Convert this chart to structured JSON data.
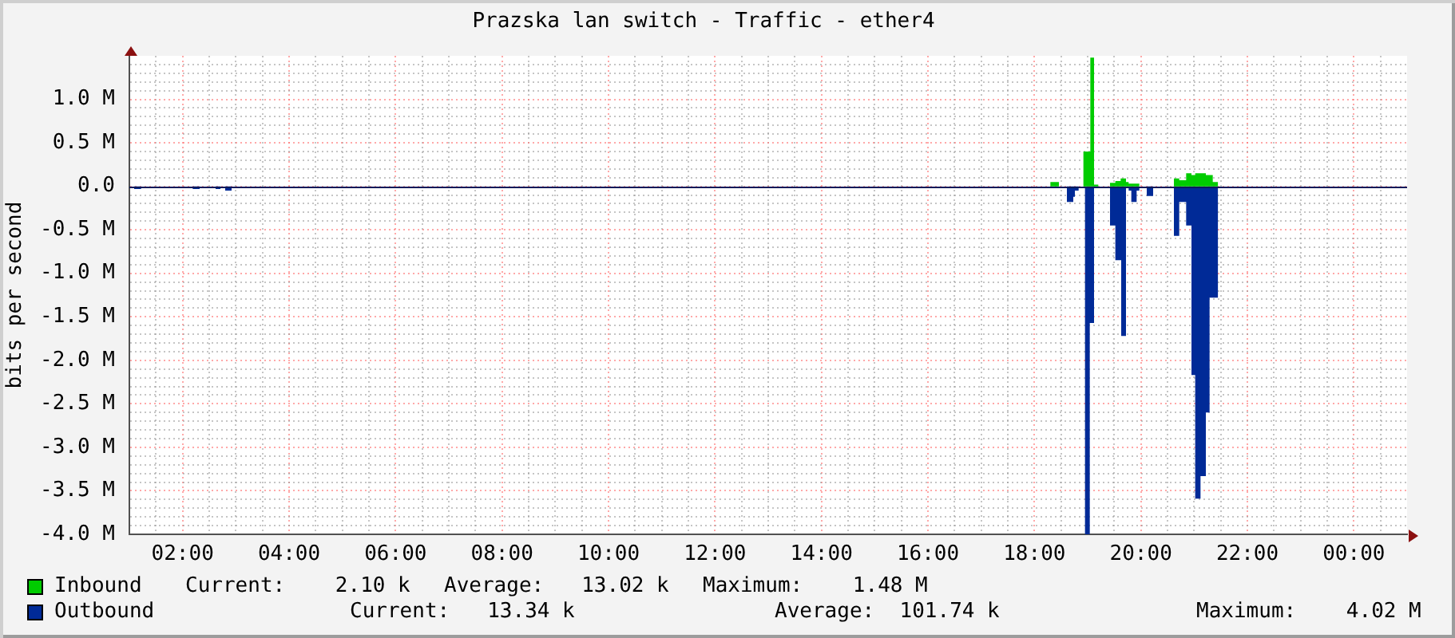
{
  "chart_data": {
    "type": "area",
    "title": "Prazska lan switch - Traffic - ether4",
    "ylabel": "bits per second",
    "xlim": [
      1,
      25
    ],
    "xticks": [
      {
        "value": 1.5,
        "label": null
      },
      {
        "value": 2,
        "label": "02:00"
      },
      {
        "value": 2.5,
        "label": null
      },
      {
        "value": 3,
        "label": null
      },
      {
        "value": 3.5,
        "label": null
      },
      {
        "value": 4,
        "label": "04:00"
      },
      {
        "value": 4.5,
        "label": null
      },
      {
        "value": 5,
        "label": null
      },
      {
        "value": 5.5,
        "label": null
      },
      {
        "value": 6,
        "label": "06:00"
      },
      {
        "value": 6.5,
        "label": null
      },
      {
        "value": 7,
        "label": null
      },
      {
        "value": 7.5,
        "label": null
      },
      {
        "value": 8,
        "label": "08:00"
      },
      {
        "value": 8.5,
        "label": null
      },
      {
        "value": 9,
        "label": null
      },
      {
        "value": 9.5,
        "label": null
      },
      {
        "value": 10,
        "label": "10:00"
      },
      {
        "value": 10.5,
        "label": null
      },
      {
        "value": 11,
        "label": null
      },
      {
        "value": 11.5,
        "label": null
      },
      {
        "value": 12,
        "label": "12:00"
      },
      {
        "value": 12.5,
        "label": null
      },
      {
        "value": 13,
        "label": null
      },
      {
        "value": 13.5,
        "label": null
      },
      {
        "value": 14,
        "label": "14:00"
      },
      {
        "value": 14.5,
        "label": null
      },
      {
        "value": 15,
        "label": null
      },
      {
        "value": 15.5,
        "label": null
      },
      {
        "value": 16,
        "label": "16:00"
      },
      {
        "value": 16.5,
        "label": null
      },
      {
        "value": 17,
        "label": null
      },
      {
        "value": 17.5,
        "label": null
      },
      {
        "value": 18,
        "label": "18:00"
      },
      {
        "value": 18.5,
        "label": null
      },
      {
        "value": 19,
        "label": null
      },
      {
        "value": 19.5,
        "label": null
      },
      {
        "value": 20,
        "label": "20:00"
      },
      {
        "value": 20.5,
        "label": null
      },
      {
        "value": 21,
        "label": null
      },
      {
        "value": 21.5,
        "label": null
      },
      {
        "value": 22,
        "label": "22:00"
      },
      {
        "value": 22.5,
        "label": null
      },
      {
        "value": 23,
        "label": null
      },
      {
        "value": 23.5,
        "label": null
      },
      {
        "value": 24,
        "label": "00:00"
      },
      {
        "value": 24.5,
        "label": null
      }
    ],
    "ylim": [
      -4000000,
      1500000
    ],
    "yticks": [
      {
        "value": -4000000,
        "label": "-4.0 M"
      },
      {
        "value": -3900000,
        "label": null
      },
      {
        "value": -3800000,
        "label": null
      },
      {
        "value": -3700000,
        "label": null
      },
      {
        "value": -3600000,
        "label": null
      },
      {
        "value": -3500000,
        "label": "-3.5 M"
      },
      {
        "value": -3400000,
        "label": null
      },
      {
        "value": -3300000,
        "label": null
      },
      {
        "value": -3200000,
        "label": null
      },
      {
        "value": -3100000,
        "label": null
      },
      {
        "value": -3000000,
        "label": "-3.0 M"
      },
      {
        "value": -2900000,
        "label": null
      },
      {
        "value": -2800000,
        "label": null
      },
      {
        "value": -2700000,
        "label": null
      },
      {
        "value": -2600000,
        "label": null
      },
      {
        "value": -2500000,
        "label": "-2.5 M"
      },
      {
        "value": -2400000,
        "label": null
      },
      {
        "value": -2300000,
        "label": null
      },
      {
        "value": -2200000,
        "label": null
      },
      {
        "value": -2100000,
        "label": null
      },
      {
        "value": -2000000,
        "label": "-2.0 M"
      },
      {
        "value": -1900000,
        "label": null
      },
      {
        "value": -1800000,
        "label": null
      },
      {
        "value": -1700000,
        "label": null
      },
      {
        "value": -1600000,
        "label": null
      },
      {
        "value": -1500000,
        "label": "-1.5 M"
      },
      {
        "value": -1400000,
        "label": null
      },
      {
        "value": -1300000,
        "label": null
      },
      {
        "value": -1200000,
        "label": null
      },
      {
        "value": -1100000,
        "label": null
      },
      {
        "value": -1000000,
        "label": "-1.0 M"
      },
      {
        "value": -900000,
        "label": null
      },
      {
        "value": -800000,
        "label": null
      },
      {
        "value": -700000,
        "label": null
      },
      {
        "value": -600000,
        "label": null
      },
      {
        "value": -500000,
        "label": "-0.5 M"
      },
      {
        "value": -400000,
        "label": null
      },
      {
        "value": -300000,
        "label": null
      },
      {
        "value": -200000,
        "label": null
      },
      {
        "value": -100000,
        "label": null
      },
      {
        "value": 0,
        "label": "0.0"
      },
      {
        "value": 100000,
        "label": null
      },
      {
        "value": 200000,
        "label": null
      },
      {
        "value": 300000,
        "label": null
      },
      {
        "value": 400000,
        "label": null
      },
      {
        "value": 500000,
        "label": "0.5 M"
      },
      {
        "value": 600000,
        "label": null
      },
      {
        "value": 700000,
        "label": null
      },
      {
        "value": 800000,
        "label": null
      },
      {
        "value": 900000,
        "label": null
      },
      {
        "value": 1000000,
        "label": "1.0 M"
      },
      {
        "value": 1100000,
        "label": null
      },
      {
        "value": 1200000,
        "label": null
      },
      {
        "value": 1300000,
        "label": null
      },
      {
        "value": 1400000,
        "label": null
      }
    ],
    "grid": true,
    "legend": "bottom",
    "ref_lines": [
      {
        "axis": "y",
        "value": 0,
        "color": "#0a1a5a"
      }
    ],
    "annotations": [
      "Current:    2.10 k",
      "Average:   13.02 k",
      "Maximum:    1.48 M",
      "Current:   13.34 k",
      "Average:  101.74 k",
      "Maximum:    4.02 M"
    ],
    "series": [
      {
        "name": "Inbound",
        "color": "#00cc00",
        "x": [
          1,
          18.3,
          18.3,
          18.46,
          18.46,
          18.92,
          18.92,
          19.05,
          19.05,
          19.12,
          19.12,
          19.2,
          19.2,
          19.42,
          19.42,
          19.52,
          19.52,
          19.62,
          19.62,
          19.72,
          19.72,
          19.77,
          19.77,
          19.97,
          19.97,
          20.62,
          20.62,
          20.72,
          20.72,
          20.85,
          20.85,
          20.95,
          20.95,
          21.02,
          21.02,
          21.22,
          21.22,
          21.35,
          21.35,
          21.45,
          21.45
        ],
        "values": [
          0,
          0,
          50000,
          50000,
          0,
          0,
          400000,
          400000,
          1480000,
          1480000,
          20000,
          20000,
          0,
          0,
          40000,
          40000,
          60000,
          60000,
          90000,
          90000,
          50000,
          50000,
          30000,
          30000,
          0,
          0,
          90000,
          90000,
          70000,
          70000,
          150000,
          150000,
          130000,
          130000,
          150000,
          150000,
          130000,
          130000,
          50000,
          50000,
          0
        ]
      },
      {
        "name": "Outbound",
        "color": "#002a97",
        "x": [
          1,
          1.09,
          1.09,
          1.22,
          1.22,
          2.19,
          2.19,
          2.32,
          2.32,
          2.62,
          2.62,
          2.71,
          2.71,
          2.8,
          2.8,
          2.92,
          2.92,
          18.61,
          18.61,
          18.73,
          18.73,
          18.76,
          18.76,
          18.83,
          18.83,
          18.95,
          18.95,
          19.04,
          19.04,
          19.12,
          19.12,
          19.2,
          19.2,
          19.42,
          19.42,
          19.52,
          19.52,
          19.63,
          19.63,
          19.72,
          19.72,
          19.77,
          19.77,
          19.82,
          19.82,
          19.92,
          19.92,
          19.97,
          19.97,
          20.11,
          20.11,
          20.23,
          20.23,
          20.62,
          20.62,
          20.72,
          20.72,
          20.85,
          20.85,
          20.95,
          20.95,
          21.02,
          21.02,
          21.12,
          21.12,
          21.22,
          21.22,
          21.29,
          21.29,
          21.45,
          21.45
        ],
        "values": [
          0,
          0,
          -30000,
          -30000,
          0,
          0,
          -30000,
          -30000,
          0,
          0,
          -30000,
          -30000,
          0,
          0,
          -50000,
          -50000,
          0,
          0,
          -180000,
          -180000,
          -120000,
          -120000,
          -50000,
          -50000,
          0,
          0,
          -4000000,
          -4000000,
          -1570000,
          -1570000,
          -20000,
          -20000,
          0,
          0,
          -450000,
          -450000,
          -850000,
          -850000,
          -1720000,
          -1720000,
          0,
          0,
          -50000,
          -50000,
          -180000,
          -180000,
          -50000,
          -50000,
          0,
          0,
          -110000,
          -110000,
          0,
          0,
          -570000,
          -570000,
          -180000,
          -180000,
          -450000,
          -450000,
          -2170000,
          -2170000,
          -3590000,
          -3590000,
          -3330000,
          -3330000,
          -2600000,
          -2600000,
          -1280000,
          -1280000,
          0
        ]
      }
    ]
  }
}
